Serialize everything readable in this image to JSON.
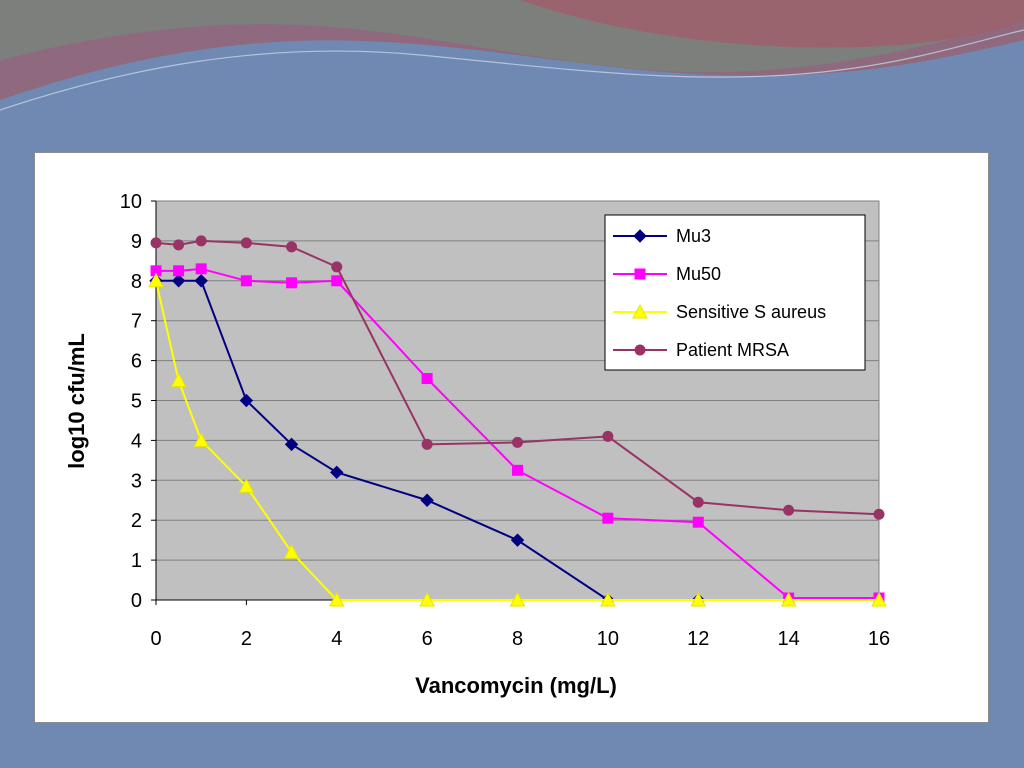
{
  "colors": {
    "plot_background": "#c0c0c0",
    "gridline": "#7f7f7f",
    "slide_background": "#7089b3"
  },
  "chart_data": {
    "type": "line",
    "title": "",
    "xlabel": "Vancomycin (mg/L)",
    "ylabel": "log10 cfu/mL",
    "xlim": [
      0,
      16
    ],
    "ylim": [
      0,
      10
    ],
    "xticks": [
      0,
      2,
      4,
      6,
      8,
      10,
      12,
      14,
      16
    ],
    "yticks": [
      0,
      1,
      2,
      3,
      4,
      5,
      6,
      7,
      8,
      9,
      10
    ],
    "grid": "horizontal",
    "legend_position": "top-right",
    "series": [
      {
        "name": "Mu3",
        "color": "#000080",
        "marker": "diamond",
        "x": [
          0,
          0.5,
          1,
          2,
          3,
          4,
          6,
          8,
          10,
          12
        ],
        "y": [
          8.0,
          8.0,
          8.0,
          5.0,
          3.9,
          3.2,
          2.5,
          1.5,
          0,
          0
        ]
      },
      {
        "name": "Mu50",
        "color": "#ff00ff",
        "marker": "square",
        "x": [
          0,
          0.5,
          1,
          2,
          3,
          4,
          6,
          8,
          10,
          12,
          14,
          16
        ],
        "y": [
          8.25,
          8.25,
          8.3,
          8.0,
          7.95,
          8.0,
          5.55,
          3.25,
          2.05,
          1.95,
          0.05,
          0.05
        ]
      },
      {
        "name": "Sensitive S aureus",
        "color": "#ffff00",
        "marker": "triangle",
        "x": [
          0,
          0.5,
          1,
          2,
          3,
          4,
          6,
          8,
          10,
          12,
          14,
          16
        ],
        "y": [
          8.0,
          5.5,
          4.0,
          2.85,
          1.2,
          0,
          0,
          0,
          0,
          0,
          0,
          0
        ]
      },
      {
        "name": "Patient MRSA",
        "color": "#993366",
        "marker": "circle",
        "x": [
          0,
          0.5,
          1,
          2,
          3,
          4,
          6,
          8,
          10,
          12,
          14,
          16
        ],
        "y": [
          8.95,
          8.9,
          9.0,
          8.95,
          8.85,
          8.35,
          3.9,
          3.95,
          4.1,
          2.45,
          2.25,
          2.15
        ]
      }
    ]
  }
}
